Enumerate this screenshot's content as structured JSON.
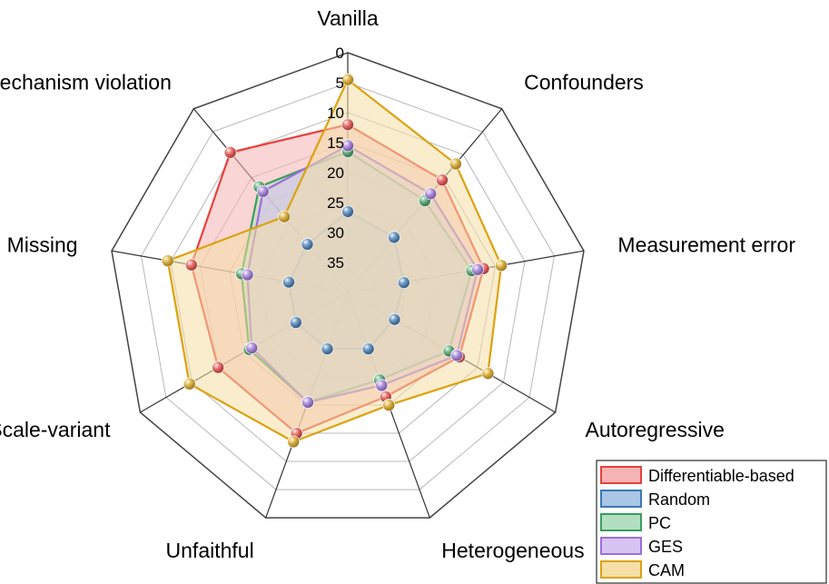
{
  "chart_data": {
    "type": "radar",
    "title": "",
    "axes": [
      "Vanilla",
      "Confounders",
      "Measurement error",
      "Autoregressive",
      "Heterogeneous",
      "Unfaithful",
      "Scale-variant",
      "Missing",
      "Mechanism violation"
    ],
    "r_ticks": [
      "0",
      "5",
      "10",
      "15",
      "20",
      "25",
      "30",
      "35"
    ],
    "r_range": [
      0,
      40
    ],
    "r_direction": "reversed",
    "grid": true,
    "legend_position": "bottom-right",
    "series": [
      {
        "name": "Differentiable-based",
        "color": "#e8413c",
        "fill": "#f5b3b3",
        "values": [
          12,
          15.5,
          17,
          18.5,
          21.5,
          15,
          15,
          13.5,
          9.5
        ]
      },
      {
        "name": "Random",
        "color": "#3c78b4",
        "fill": "#a9c6e6",
        "values": [
          26.5,
          28,
          30.5,
          31,
          30,
          30,
          30,
          30,
          29.5
        ]
      },
      {
        "name": "PC",
        "color": "#3a9d5d",
        "fill": "#b3dfc1",
        "values": [
          16.5,
          20,
          19,
          20.5,
          24.5,
          20.5,
          21,
          22,
          17
        ]
      },
      {
        "name": "GES",
        "color": "#9b6fd9",
        "fill": "#d7c4f2",
        "values": [
          15.5,
          18.5,
          18,
          19,
          23.5,
          20.5,
          21.5,
          23,
          18
        ]
      },
      {
        "name": "CAM",
        "color": "#dca20f",
        "fill": "#f4dfa6",
        "values": [
          4.5,
          12,
          14,
          13,
          20,
          13.5,
          9.5,
          9.5,
          23.5
        ]
      }
    ]
  }
}
